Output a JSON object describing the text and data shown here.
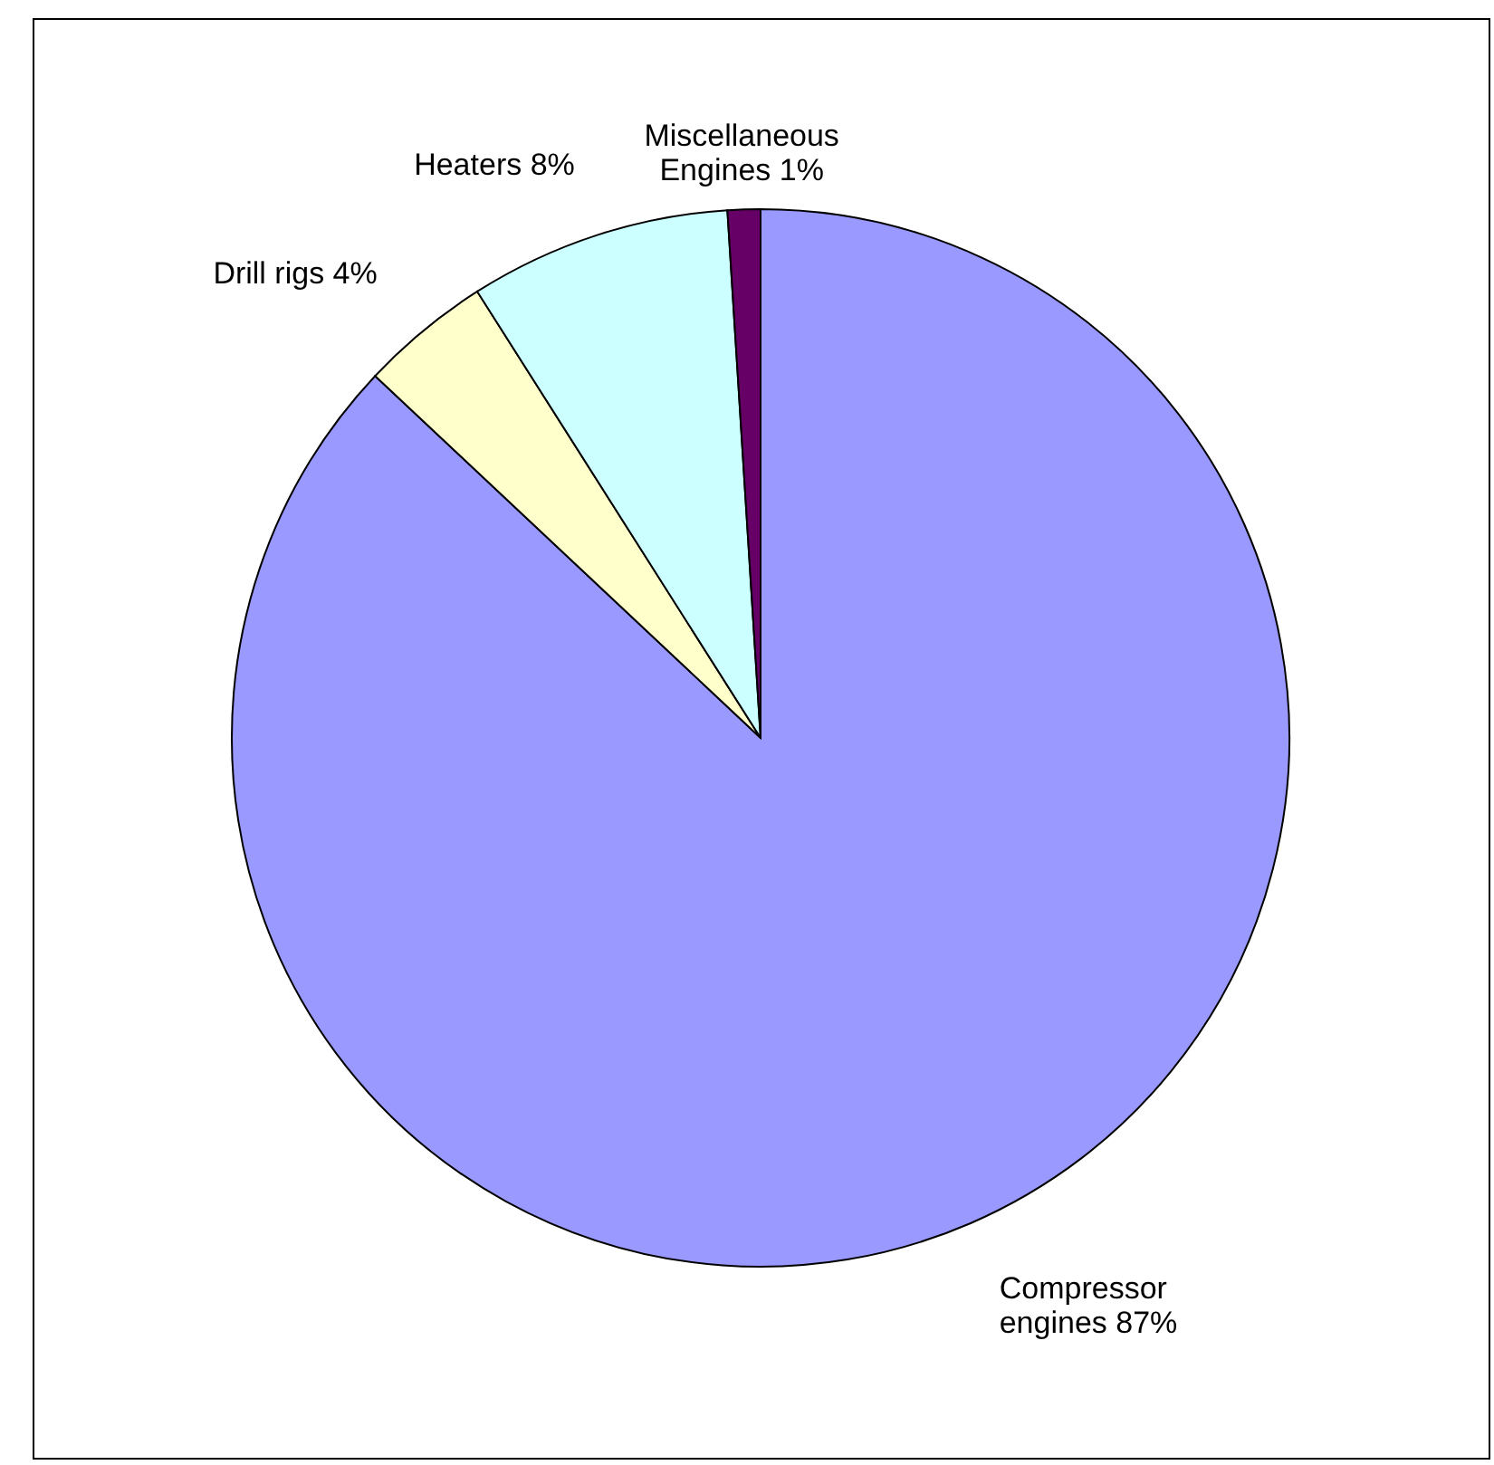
{
  "chart_data": {
    "type": "pie",
    "categories": [
      "Compressor engines",
      "Drill rigs",
      "Heaters",
      "Miscellaneous Engines"
    ],
    "values": [
      87,
      4,
      8,
      1
    ],
    "value_labels": [
      "87%",
      "4%",
      "8%",
      "1%"
    ],
    "colors": [
      "#9999ff",
      "#ffffcc",
      "#ccffff",
      "#660066"
    ]
  }
}
